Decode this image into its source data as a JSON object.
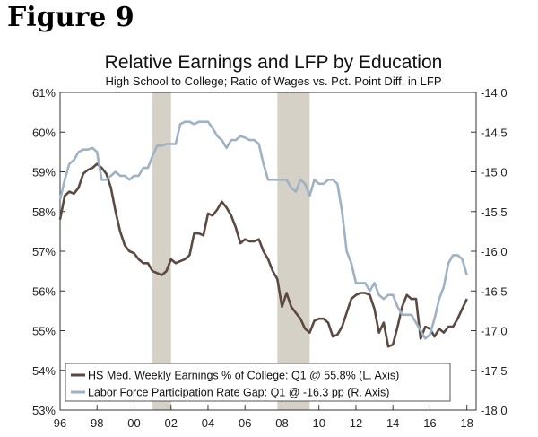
{
  "figure_label": "Figure 9",
  "chart_data": {
    "type": "line",
    "title": "Relative Earnings and LFP by Education",
    "subtitle": "High School to College; Ratio of Wages vs. Pct. Point Diff. in LFP",
    "x_ticks": [
      "96",
      "98",
      "00",
      "02",
      "04",
      "06",
      "08",
      "10",
      "12",
      "14",
      "16",
      "18"
    ],
    "xlim": [
      1996,
      2018.5
    ],
    "left_axis": {
      "ticks": [
        "61%",
        "60%",
        "59%",
        "58%",
        "57%",
        "56%",
        "55%",
        "54%",
        "53%"
      ],
      "ylim": [
        53,
        61
      ]
    },
    "right_axis": {
      "ticks": [
        "-14.0",
        "-14.5",
        "-15.0",
        "-15.5",
        "-16.0",
        "-16.5",
        "-17.0",
        "-17.5",
        "-18.0"
      ],
      "ylim": [
        -18,
        -14
      ]
    },
    "recessions": [
      [
        2001.0,
        2002.0
      ],
      [
        2007.75,
        2009.5
      ]
    ],
    "series": [
      {
        "name": "HS Med. Weekly Earnings % of College: Q1 @ 55.8% (L. Axis)",
        "axis": "left",
        "color": "#5a4a42",
        "x": [
          1996.0,
          1996.25,
          1996.5,
          1996.75,
          1997.0,
          1997.25,
          1997.5,
          1997.75,
          1998.0,
          1998.25,
          1998.5,
          1998.75,
          1999.0,
          1999.25,
          1999.5,
          1999.75,
          2000.0,
          2000.25,
          2000.5,
          2000.75,
          2001.0,
          2001.25,
          2001.5,
          2001.75,
          2002.0,
          2002.25,
          2002.5,
          2002.75,
          2003.0,
          2003.25,
          2003.5,
          2003.75,
          2004.0,
          2004.25,
          2004.5,
          2004.75,
          2005.0,
          2005.25,
          2005.5,
          2005.75,
          2006.0,
          2006.25,
          2006.5,
          2006.75,
          2007.0,
          2007.25,
          2007.5,
          2007.75,
          2008.0,
          2008.25,
          2008.5,
          2008.75,
          2009.0,
          2009.25,
          2009.5,
          2009.75,
          2010.0,
          2010.25,
          2010.5,
          2010.75,
          2011.0,
          2011.25,
          2011.5,
          2011.75,
          2012.0,
          2012.25,
          2012.5,
          2012.75,
          2013.0,
          2013.25,
          2013.5,
          2013.75,
          2014.0,
          2014.25,
          2014.5,
          2014.75,
          2015.0,
          2015.25,
          2015.5,
          2015.75,
          2016.0,
          2016.25,
          2016.5,
          2016.75,
          2017.0,
          2017.25,
          2017.5,
          2017.75,
          2018.0
        ],
        "y": [
          57.8,
          58.4,
          58.5,
          58.45,
          58.6,
          58.95,
          59.05,
          59.1,
          59.2,
          59.1,
          58.95,
          58.6,
          58.0,
          57.5,
          57.15,
          57.0,
          56.95,
          56.8,
          56.7,
          56.7,
          56.5,
          56.45,
          56.4,
          56.5,
          56.8,
          56.7,
          56.75,
          56.8,
          56.9,
          57.45,
          57.45,
          57.4,
          57.95,
          57.9,
          58.05,
          58.25,
          58.1,
          57.9,
          57.6,
          57.2,
          57.3,
          57.25,
          57.25,
          57.3,
          57.0,
          56.8,
          56.5,
          56.3,
          55.6,
          55.95,
          55.6,
          55.45,
          55.3,
          55.05,
          54.95,
          55.25,
          55.3,
          55.3,
          55.2,
          54.85,
          54.9,
          55.1,
          55.45,
          55.8,
          55.9,
          55.95,
          55.95,
          55.9,
          55.55,
          54.95,
          55.2,
          54.6,
          54.65,
          55.1,
          55.6,
          55.9,
          55.8,
          55.8,
          54.8,
          55.1,
          55.05,
          54.85,
          55.05,
          54.95,
          55.1,
          55.1,
          55.3,
          55.55,
          55.8
        ]
      },
      {
        "name": "Labor Force Participation Rate Gap: Q1 @ -16.3 pp (R. Axis)",
        "axis": "right",
        "color": "#9fb2c4",
        "x": [
          1996.0,
          1996.25,
          1996.5,
          1996.75,
          1997.0,
          1997.25,
          1997.5,
          1997.75,
          1998.0,
          1998.25,
          1998.5,
          1998.75,
          1999.0,
          1999.25,
          1999.5,
          1999.75,
          2000.0,
          2000.25,
          2000.5,
          2000.75,
          2001.0,
          2001.25,
          2001.5,
          2001.75,
          2002.0,
          2002.25,
          2002.5,
          2002.75,
          2003.0,
          2003.25,
          2003.5,
          2003.75,
          2004.0,
          2004.25,
          2004.5,
          2004.75,
          2005.0,
          2005.25,
          2005.5,
          2005.75,
          2006.0,
          2006.25,
          2006.5,
          2006.75,
          2007.0,
          2007.25,
          2007.5,
          2007.75,
          2008.0,
          2008.25,
          2008.5,
          2008.75,
          2009.0,
          2009.25,
          2009.5,
          2009.75,
          2010.0,
          2010.25,
          2010.5,
          2010.75,
          2011.0,
          2011.25,
          2011.5,
          2011.75,
          2012.0,
          2012.25,
          2012.5,
          2012.75,
          2013.0,
          2013.25,
          2013.5,
          2013.75,
          2014.0,
          2014.25,
          2014.5,
          2014.75,
          2015.0,
          2015.25,
          2015.5,
          2015.75,
          2016.0,
          2016.25,
          2016.5,
          2016.75,
          2017.0,
          2017.25,
          2017.5,
          2017.75,
          2018.0
        ],
        "y": [
          -15.35,
          -15.1,
          -14.9,
          -14.85,
          -14.75,
          -14.72,
          -14.72,
          -14.7,
          -14.75,
          -15.1,
          -15.1,
          -15.05,
          -15.0,
          -15.05,
          -15.05,
          -15.1,
          -15.05,
          -15.05,
          -14.95,
          -14.95,
          -14.8,
          -14.67,
          -14.67,
          -14.65,
          -14.65,
          -14.65,
          -14.4,
          -14.37,
          -14.37,
          -14.4,
          -14.37,
          -14.37,
          -14.37,
          -14.45,
          -14.55,
          -14.6,
          -14.7,
          -14.6,
          -14.6,
          -14.55,
          -14.57,
          -14.6,
          -14.6,
          -14.65,
          -14.9,
          -15.1,
          -15.1,
          -15.1,
          -15.1,
          -15.1,
          -15.2,
          -15.25,
          -15.1,
          -15.15,
          -15.3,
          -15.1,
          -15.15,
          -15.15,
          -15.1,
          -15.1,
          -15.15,
          -15.5,
          -16.0,
          -16.15,
          -16.4,
          -16.4,
          -16.4,
          -16.5,
          -16.4,
          -16.55,
          -16.6,
          -16.55,
          -16.55,
          -16.7,
          -16.8,
          -16.8,
          -16.8,
          -16.9,
          -17.0,
          -17.1,
          -17.05,
          -16.85,
          -16.6,
          -16.45,
          -16.15,
          -16.05,
          -16.05,
          -16.1,
          -16.3
        ]
      }
    ],
    "legend_position": "bottom-left"
  }
}
